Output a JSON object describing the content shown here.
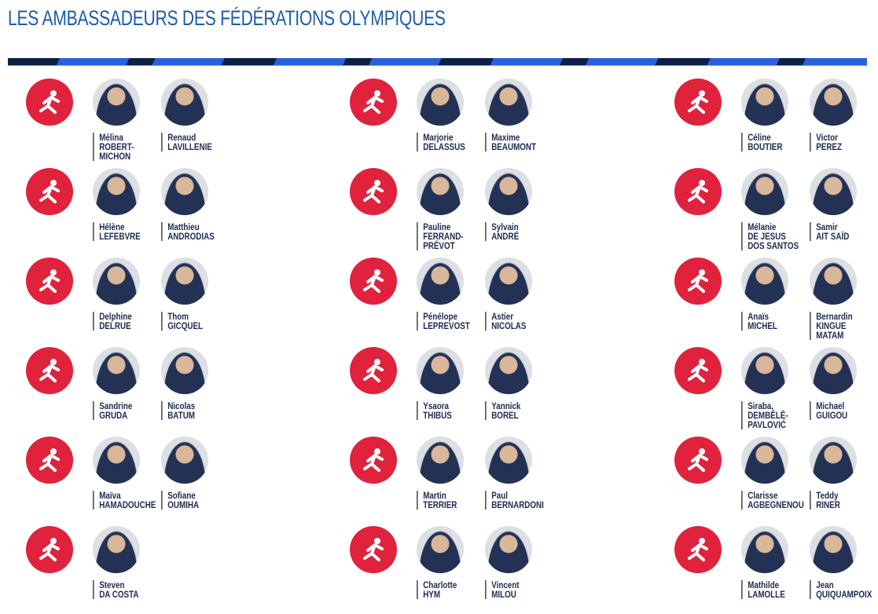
{
  "title": "LES AMBASSADEURS DES FÉDÉRATIONS OLYMPIQUES",
  "columns": [
    [
      {
        "sport": "athletics-icon",
        "people": [
          [
            "Mélina",
            "ROBERT-",
            "MICHON"
          ],
          [
            "Renaud",
            "LAVILLENIE"
          ]
        ]
      },
      {
        "sport": "rowing-icon",
        "people": [
          [
            "Hélène",
            "LEFEBVRE"
          ],
          [
            "Matthieu",
            "ANDRODIAS"
          ]
        ]
      },
      {
        "sport": "badminton-icon",
        "people": [
          [
            "Delphine",
            "DELRUE"
          ],
          [
            "Thom",
            "GICQUEL"
          ]
        ]
      },
      {
        "sport": "basketball-icon",
        "people": [
          [
            "Sandrine",
            "GRUDA"
          ],
          [
            "Nicolas",
            "BATUM"
          ]
        ]
      },
      {
        "sport": "boxing-icon",
        "people": [
          [
            "Maïva",
            "HAMADOUCHE"
          ],
          [
            "Sofiane",
            "OUMIHA"
          ]
        ]
      },
      {
        "sport": "karate-icon",
        "people": [
          [
            "Steven",
            "DA COSTA"
          ]
        ]
      }
    ],
    [
      {
        "sport": "canoe-icon",
        "people": [
          [
            "Marjorie",
            "DELASSUS"
          ],
          [
            "Maxime",
            "BEAUMONT"
          ]
        ]
      },
      {
        "sport": "cycling-icon",
        "people": [
          [
            "Pauline",
            "FERRAND-",
            "PRÉVOT"
          ],
          [
            "Sylvain",
            "ANDRÉ"
          ]
        ]
      },
      {
        "sport": "equestrian-icon",
        "people": [
          [
            "Pénélope",
            "LEPREVOST"
          ],
          [
            "Astier",
            "NICOLAS"
          ]
        ]
      },
      {
        "sport": "fencing-icon",
        "people": [
          [
            "Ysaora",
            "THIBUS"
          ],
          [
            "Yannick",
            "BOREL"
          ]
        ]
      },
      {
        "sport": "football-icon",
        "people": [
          [
            "Martin",
            "TERRIER"
          ],
          [
            "Paul",
            "BERNARDONI"
          ]
        ]
      },
      {
        "sport": "skateboarding-icon",
        "people": [
          [
            "Charlotte",
            "HYM"
          ],
          [
            "Vincent",
            "MILOU"
          ]
        ]
      }
    ],
    [
      {
        "sport": "golf-icon",
        "people": [
          [
            "Céline",
            "BOUTIER"
          ],
          [
            "Victor",
            "PEREZ"
          ]
        ]
      },
      {
        "sport": "gymnastics-icon",
        "people": [
          [
            "Mélanie",
            "DE JESUS",
            "DOS SANTOS"
          ],
          [
            "Samir",
            "AIT SAÏD"
          ]
        ]
      },
      {
        "sport": "weightlifting-icon",
        "people": [
          [
            "Anaïs",
            "MICHEL"
          ],
          [
            "Bernardin",
            "KINGUE",
            "MATAM"
          ]
        ]
      },
      {
        "sport": "handball-icon",
        "people": [
          [
            "Siraba,",
            "DEMBÉLÉ-",
            "PAVLOVIĆ"
          ],
          [
            "Michael",
            "GUIGOU"
          ]
        ]
      },
      {
        "sport": "judo-icon",
        "people": [
          [
            "Clarisse",
            "AGBEGNENOU"
          ],
          [
            "Teddy",
            "RINER"
          ]
        ]
      },
      {
        "sport": "shooting-icon",
        "people": [
          [
            "Mathilde",
            "LAMOLLE"
          ],
          [
            "Jean",
            "QUIQUAMPOIX"
          ]
        ]
      }
    ]
  ],
  "colors": {
    "title": "#1c5ca8",
    "sport": "#e0223c",
    "name": "#1e2a4f"
  }
}
